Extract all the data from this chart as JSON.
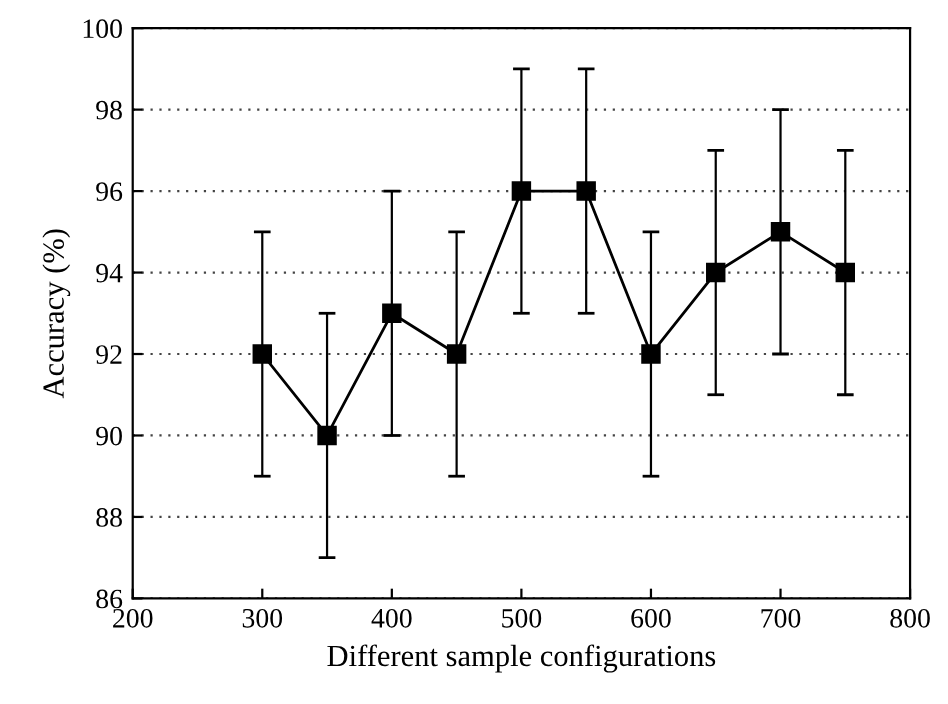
{
  "chart_data": {
    "type": "line",
    "xlabel": "Different sample configurations",
    "ylabel": "Accuracy (%)",
    "x": [
      300,
      350,
      400,
      450,
      500,
      550,
      600,
      650,
      700,
      750
    ],
    "series": [
      {
        "color": "#000000",
        "values": [
          92,
          90,
          93,
          92,
          96,
          96,
          92,
          94,
          95,
          94
        ],
        "errors": [
          3,
          3,
          3,
          3,
          3,
          3,
          3,
          3,
          3,
          3
        ]
      }
    ],
    "xlim": [
      200,
      800
    ],
    "xticks": [
      200,
      300,
      400,
      500,
      600,
      700,
      800
    ],
    "ylim": [
      86,
      100
    ],
    "yticks": [
      86,
      88,
      90,
      92,
      94,
      96,
      98,
      100
    ],
    "grid": "y",
    "marker": "square",
    "line_style": "solid"
  }
}
